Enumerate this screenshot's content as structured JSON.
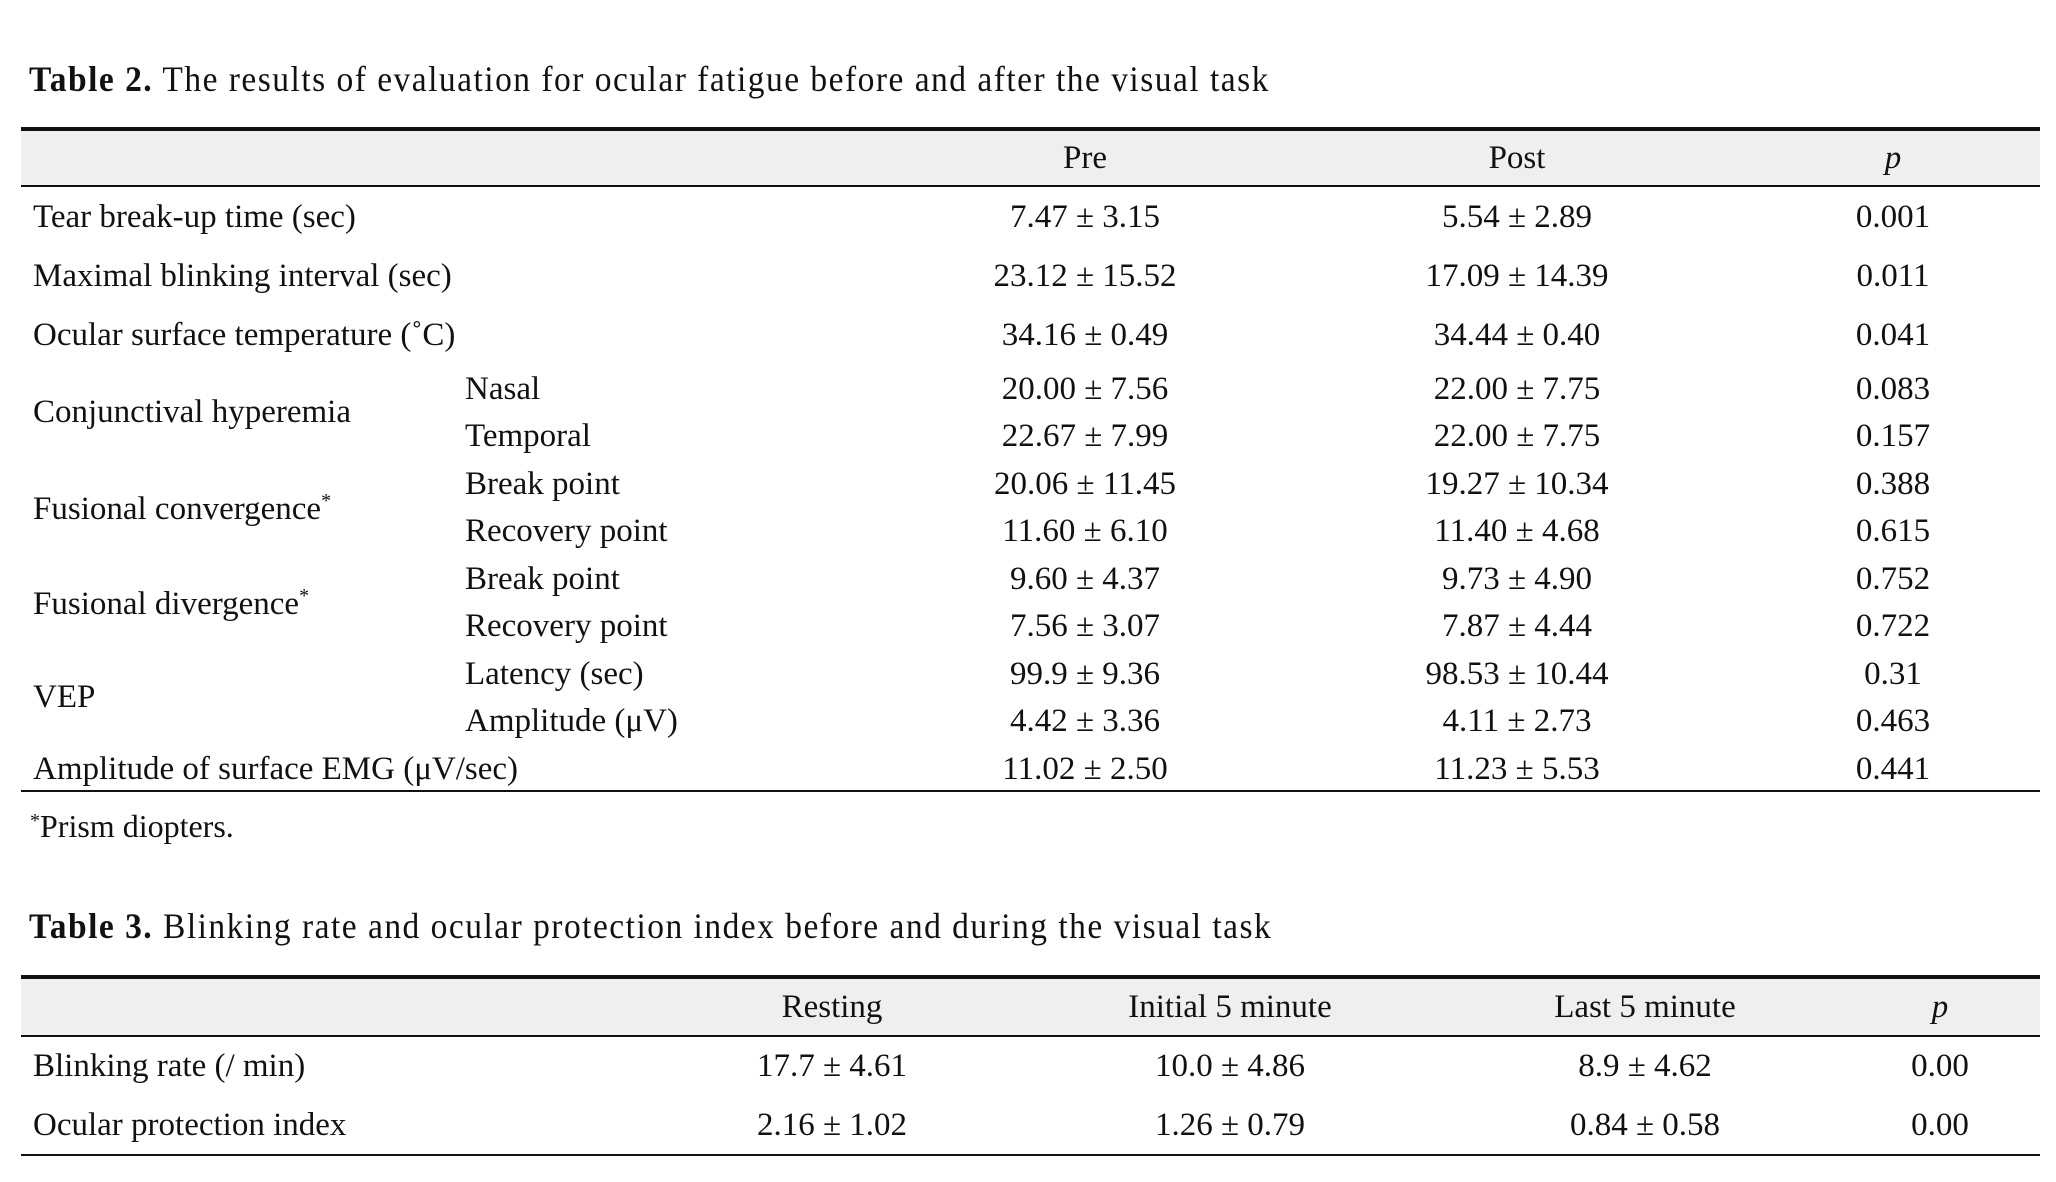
{
  "table2": {
    "caption_label": "Table 2.",
    "caption_text": "The results of evaluation for ocular fatigue before and after the visual task",
    "headers": {
      "pre": "Pre",
      "post": "Post",
      "p": "p"
    },
    "rows": [
      {
        "label": "Tear break-up time (sec)",
        "sub": "",
        "pre": "7.47 ± 3.15",
        "post": "5.54 ± 2.89",
        "p": "0.001"
      },
      {
        "label": "Maximal blinking interval (sec)",
        "sub": "",
        "pre": "23.12 ± 15.52",
        "post": "17.09 ± 14.39",
        "p": "0.011"
      },
      {
        "label": "Ocular surface temperature (˚C)",
        "sub": "",
        "pre": "34.16 ± 0.49",
        "post": "34.44 ± 0.40",
        "p": "0.041"
      },
      {
        "label": "",
        "sub": "Nasal",
        "pre": "20.00 ± 7.56",
        "post": "22.00 ± 7.75",
        "p": "0.083"
      },
      {
        "label": "",
        "sub": "Temporal",
        "pre": "22.67 ± 7.99",
        "post": "22.00 ± 7.75",
        "p": "0.157"
      },
      {
        "label": "",
        "sub": "Break point",
        "pre": "20.06 ± 11.45",
        "post": "19.27 ± 10.34",
        "p": "0.388"
      },
      {
        "label": "",
        "sub": "Recovery point",
        "pre": "11.60 ± 6.10",
        "post": "11.40 ± 4.68",
        "p": "0.615"
      },
      {
        "label": "",
        "sub": "Break point",
        "pre": "9.60 ± 4.37",
        "post": "9.73 ± 4.90",
        "p": "0.752"
      },
      {
        "label": "",
        "sub": "Recovery point",
        "pre": "7.56 ± 3.07",
        "post": "7.87 ± 4.44",
        "p": "0.722"
      },
      {
        "label": "",
        "sub": "Latency (sec)",
        "pre": "99.9 ± 9.36",
        "post": "98.53 ± 10.44",
        "p": "0.31"
      },
      {
        "label": "",
        "sub": "Amplitude (μV)",
        "pre": "4.42 ± 3.36",
        "post": "4.11 ± 2.73",
        "p": "0.463"
      },
      {
        "label": "Amplitude of surface EMG (μV/sec)",
        "sub": "",
        "pre": "11.02 ± 2.50",
        "post": "11.23 ± 5.53",
        "p": "0.441"
      }
    ],
    "groups": {
      "conjunctival": "Conjunctival hyperemia",
      "fus_conv": "Fusional convergence",
      "fus_div": "Fusional divergence",
      "vep": "VEP",
      "asterisk": "*"
    },
    "footnote_mark": "*",
    "footnote": "Prism diopters."
  },
  "table3": {
    "caption_label": "Table 3.",
    "caption_text": "Blinking rate and ocular protection index before and during the visual task",
    "headers": {
      "resting": "Resting",
      "initial": "Initial 5 minute",
      "last": "Last 5 minute",
      "p": "p"
    },
    "rows": [
      {
        "label": "Blinking rate (/ min)",
        "resting": "17.7 ± 4.61",
        "initial": "10.0 ± 4.86",
        "last": "8.9 ± 4.62",
        "p": "0.00"
      },
      {
        "label": "Ocular protection index",
        "resting": "2.16 ± 1.02",
        "initial": "1.26 ± 0.79",
        "last": "0.84 ± 0.58",
        "p": "0.00"
      }
    ]
  }
}
